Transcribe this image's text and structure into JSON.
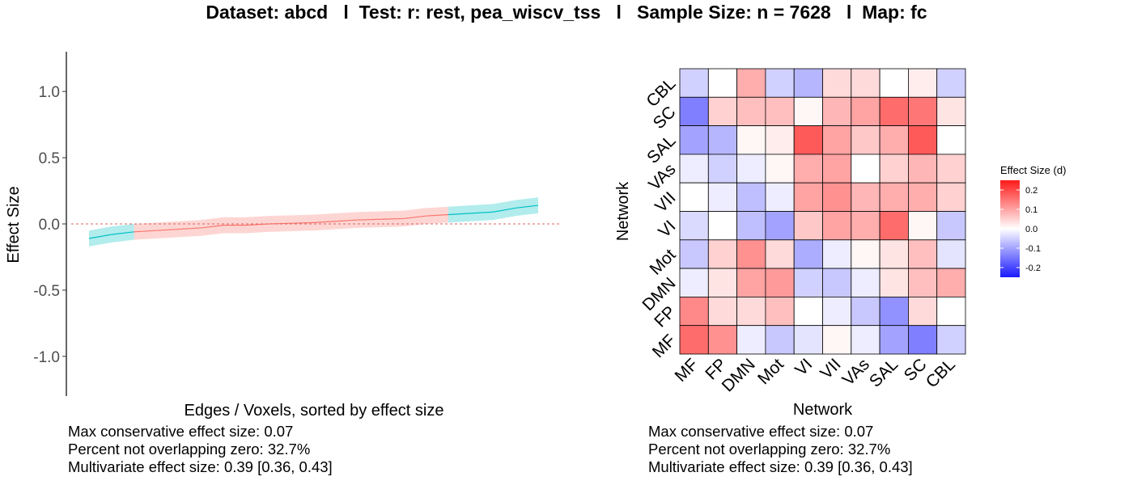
{
  "title": "Dataset: abcd   l  Test: r: rest, pea_wiscv_tss   l   Sample Size: n = 7628   l  Map: fc",
  "colors": {
    "overlap_zero": "#f8766d",
    "not_overlapping_zero": "#00bfc4",
    "zero_line": "#e06060",
    "heat_low": "#1a1aff",
    "heat_mid": "#ffffff",
    "heat_high": "#ff1a1a"
  },
  "chart_data": [
    {
      "type": "line",
      "xlabel": "Edges / Voxels, sorted by effect size",
      "ylabel": "Effect Size",
      "ylim": [
        -1.3,
        1.3
      ],
      "yticks": [
        1.0,
        0.5,
        0.0,
        -0.5,
        -1.0
      ],
      "ytick_labels": [
        "1.0",
        "0.5",
        "0.0",
        "-0.5",
        "-1.0"
      ],
      "grid": false,
      "reference_line": 0,
      "series": [
        {
          "x": [
            0,
            0.05,
            0.1,
            0.15,
            0.2,
            0.25,
            0.3,
            0.35,
            0.4,
            0.45,
            0.5,
            0.55,
            0.6,
            0.65,
            0.7,
            0.75,
            0.8,
            0.85,
            0.9,
            0.95,
            1.0
          ],
          "values": [
            -0.11,
            -0.08,
            -0.06,
            -0.05,
            -0.04,
            -0.03,
            -0.01,
            -0.01,
            0.0,
            0.005,
            0.01,
            0.02,
            0.03,
            0.035,
            0.04,
            0.06,
            0.07,
            0.08,
            0.09,
            0.12,
            0.14
          ],
          "lower": [
            -0.17,
            -0.14,
            -0.12,
            -0.11,
            -0.1,
            -0.09,
            -0.07,
            -0.07,
            -0.06,
            -0.055,
            -0.05,
            -0.04,
            -0.03,
            -0.025,
            -0.02,
            0.0,
            0.01,
            0.02,
            0.03,
            0.06,
            0.08
          ],
          "upper": [
            -0.05,
            -0.02,
            0.0,
            0.01,
            0.02,
            0.03,
            0.05,
            0.05,
            0.06,
            0.065,
            0.07,
            0.08,
            0.09,
            0.095,
            0.1,
            0.12,
            0.13,
            0.14,
            0.15,
            0.18,
            0.2
          ],
          "not_overlapping_zero": [
            true,
            true,
            false,
            false,
            false,
            false,
            false,
            false,
            false,
            false,
            false,
            false,
            false,
            false,
            false,
            false,
            true,
            true,
            true,
            true,
            true
          ]
        }
      ],
      "stats": [
        "Max conservative effect size: 0.07",
        "Percent not overlapping zero: 32.7%",
        "Multivariate effect size: 0.39 [0.36, 0.43]"
      ]
    },
    {
      "type": "heatmap",
      "xlabel": "Network",
      "ylabel": "Network",
      "x_categories": [
        "MF",
        "FP",
        "DMN",
        "Mot",
        "VI",
        "VII",
        "VAs",
        "SAL",
        "SC",
        "CBL"
      ],
      "y_categories_top_to_bottom": [
        "CBL",
        "SC",
        "SAL",
        "VAs",
        "VII",
        "VI",
        "Mot",
        "DMN",
        "FP",
        "MF"
      ],
      "values_top_to_bottom": [
        [
          -0.05,
          0.0,
          0.09,
          -0.05,
          -0.08,
          0.04,
          0.04,
          0.0,
          0.02,
          -0.05
        ],
        [
          -0.14,
          0.05,
          0.07,
          0.07,
          0.01,
          0.08,
          0.1,
          0.16,
          0.15,
          0.03
        ],
        [
          -0.1,
          -0.08,
          0.01,
          0.02,
          0.18,
          0.1,
          0.06,
          0.09,
          0.18,
          0.0
        ],
        [
          -0.02,
          -0.05,
          -0.02,
          0.01,
          0.09,
          0.1,
          0.0,
          0.05,
          0.08,
          0.05
        ],
        [
          0.0,
          -0.02,
          -0.07,
          -0.02,
          0.1,
          0.12,
          0.08,
          0.09,
          0.09,
          0.05
        ],
        [
          -0.04,
          0.0,
          -0.07,
          -0.1,
          0.06,
          0.1,
          0.09,
          0.16,
          0.01,
          -0.06
        ],
        [
          -0.06,
          0.05,
          0.12,
          0.04,
          -0.09,
          -0.02,
          0.01,
          0.03,
          0.07,
          -0.03
        ],
        [
          -0.02,
          0.03,
          0.1,
          0.11,
          -0.05,
          -0.06,
          -0.02,
          0.03,
          0.07,
          0.09
        ],
        [
          0.13,
          0.04,
          0.04,
          0.07,
          0.0,
          -0.02,
          -0.06,
          -0.12,
          0.04,
          0.0
        ],
        [
          0.16,
          0.12,
          -0.02,
          -0.06,
          -0.03,
          0.01,
          -0.02,
          -0.1,
          -0.14,
          -0.05
        ]
      ],
      "colorbar": {
        "title": "Effect Size (d)",
        "range": [
          -0.25,
          0.25
        ],
        "ticks": [
          0.2,
          0.1,
          0.0,
          -0.1,
          -0.2
        ],
        "tick_labels": [
          "0.2",
          "0.1",
          "0.0",
          "-0.1",
          "-0.2"
        ]
      },
      "stats": [
        "Max conservative effect size: 0.07",
        "Percent not overlapping zero: 32.7%",
        "Multivariate effect size: 0.39 [0.36, 0.43]"
      ]
    }
  ]
}
